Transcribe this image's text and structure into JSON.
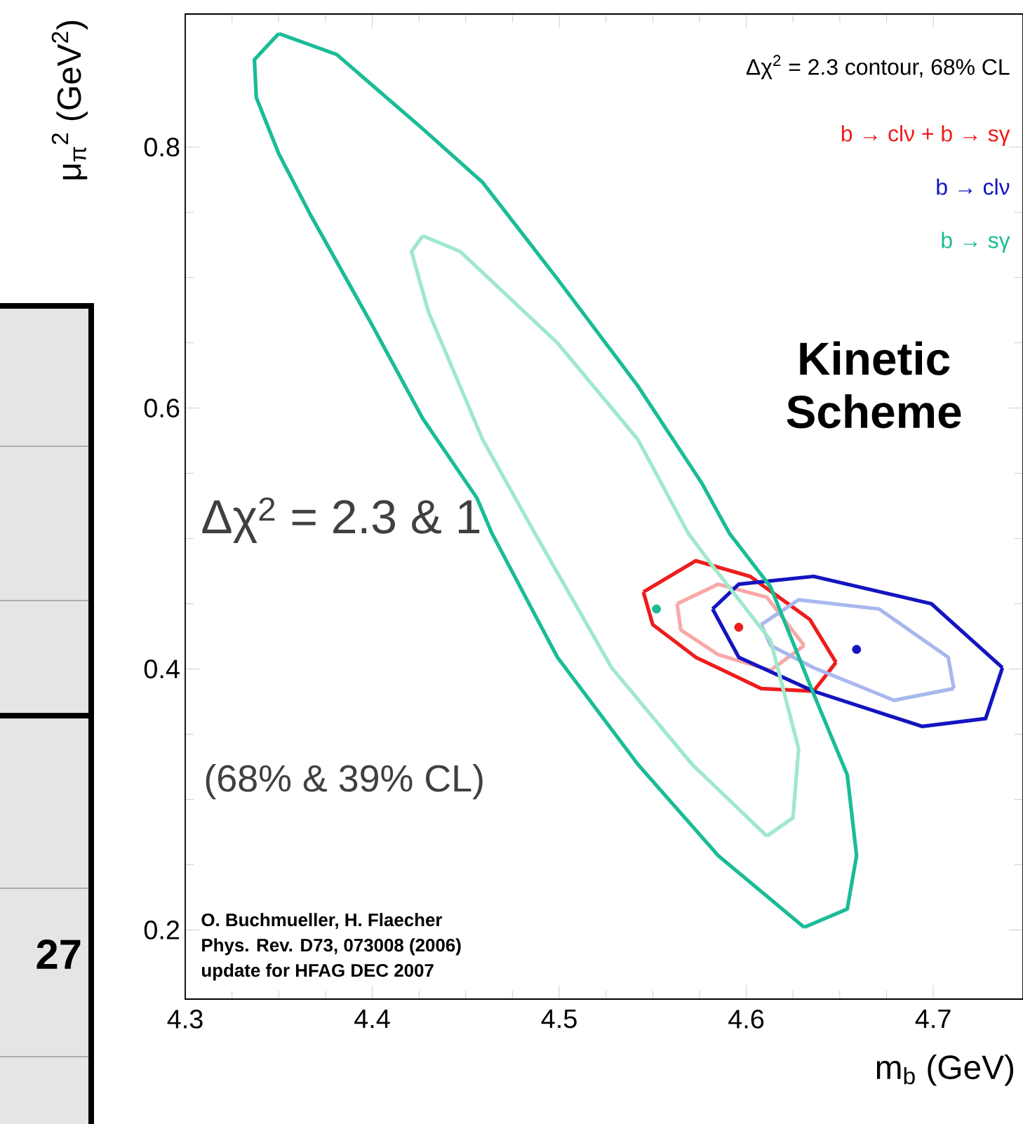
{
  "chart_data": {
    "type": "line",
    "xlabel": "m$_{b}$ (GeV)",
    "ylabel": "μ$_{π}$$^{2}$ (GeV$^{2}$)",
    "xlim": [
      4.3,
      4.748
    ],
    "ylim": [
      0.147,
      0.902
    ],
    "xticks": [
      4.3,
      4.4,
      4.5,
      4.6,
      4.7
    ],
    "yticks": [
      0.2,
      0.4,
      0.6,
      0.8
    ],
    "annotations": [
      "Δχ$^{2}$ = 2.3 contour, 68% CL",
      "Kinetic Scheme",
      "Δχ$^{2}$ = 2.3 & 1",
      "(68% & 39% CL)",
      "O. Buchmueller, H. Flaecher",
      "Phys. Rev. D73, 073008 (2006)",
      "update for HFAG DEC 2007",
      "27"
    ],
    "series": [
      {
        "name": "b → clν + b → sγ",
        "color": "#ee1c1c",
        "x": [
          4.545,
          4.573,
          4.602,
          4.634,
          4.648
        ],
        "values": [
          0.459,
          0.483,
          0.471,
          0.438,
          0.405
        ]
      },
      {
        "color": "#ee1c1c",
        "x": [
          4.545,
          4.55,
          4.573,
          4.608,
          4.636,
          4.648
        ],
        "values": [
          0.459,
          0.434,
          0.409,
          0.385,
          0.383,
          0.405
        ]
      },
      {
        "color": "#f7a8a8",
        "x": [
          4.563,
          4.585,
          4.611,
          4.631
        ],
        "values": [
          0.45,
          0.465,
          0.455,
          0.418
        ]
      },
      {
        "color": "#f7a8a8",
        "x": [
          4.563,
          4.565,
          4.585,
          4.613,
          4.631
        ],
        "values": [
          0.45,
          0.43,
          0.411,
          0.399,
          0.418
        ]
      },
      {
        "name": "b → clν",
        "color": "#1414c0",
        "x": [
          4.582,
          4.596,
          4.636,
          4.699,
          4.737
        ],
        "values": [
          0.446,
          0.465,
          0.471,
          0.45,
          0.401
        ]
      },
      {
        "color": "#1414c0",
        "x": [
          4.582,
          4.596,
          4.636,
          4.694,
          4.728,
          4.737
        ],
        "values": [
          0.446,
          0.409,
          0.383,
          0.356,
          0.362,
          0.401
        ]
      },
      {
        "color": "#a8b8ee",
        "x": [
          4.608,
          4.628,
          4.671,
          4.708,
          4.711
        ],
        "values": [
          0.434,
          0.453,
          0.446,
          0.409,
          0.385
        ]
      },
      {
        "color": "#a8b8ee",
        "x": [
          4.608,
          4.613,
          4.636,
          4.679,
          4.711
        ],
        "values": [
          0.434,
          0.418,
          0.401,
          0.376,
          0.385
        ]
      },
      {
        "name": "b → sγ",
        "color": "#1abc96",
        "x": [
          4.35,
          4.381,
          4.427,
          4.459,
          4.499,
          4.542,
          4.576,
          4.591,
          4.613,
          4.636,
          4.654,
          4.659,
          4.654,
          4.631
        ],
        "values": [
          0.887,
          0.871,
          0.814,
          0.773,
          0.699,
          0.617,
          0.543,
          0.504,
          0.463,
          0.381,
          0.319,
          0.257,
          0.216,
          0.202
        ]
      },
      {
        "color": "#1abc96",
        "x": [
          4.35,
          4.337,
          4.338,
          4.35,
          4.367,
          4.399,
          4.427,
          4.456,
          4.464,
          4.499,
          4.542,
          4.585,
          4.631
        ],
        "values": [
          0.887,
          0.867,
          0.838,
          0.795,
          0.748,
          0.666,
          0.592,
          0.531,
          0.504,
          0.409,
          0.327,
          0.257,
          0.202
        ]
      },
      {
        "color": "#a0e8cc",
        "x": [
          4.427,
          4.447,
          4.499,
          4.542,
          4.569,
          4.582,
          4.613,
          4.628,
          4.625,
          4.611
        ],
        "values": [
          0.732,
          0.72,
          0.65,
          0.576,
          0.504,
          0.479,
          0.422,
          0.339,
          0.286,
          0.272
        ]
      },
      {
        "color": "#a0e8cc",
        "x": [
          4.427,
          4.421,
          4.43,
          4.459,
          4.487,
          4.528,
          4.571,
          4.611
        ],
        "values": [
          0.732,
          0.72,
          0.674,
          0.576,
          0.504,
          0.401,
          0.327,
          0.272
        ]
      },
      {
        "type": "scatter",
        "color": "#ee1c1c",
        "x": [
          4.596
        ],
        "values": [
          0.432
        ]
      },
      {
        "type": "scatter",
        "color": "#1414c0",
        "x": [
          4.659
        ],
        "values": [
          0.415
        ]
      },
      {
        "type": "scatter",
        "color": "#1abc96",
        "x": [
          4.552
        ],
        "values": [
          0.446
        ]
      }
    ]
  }
}
